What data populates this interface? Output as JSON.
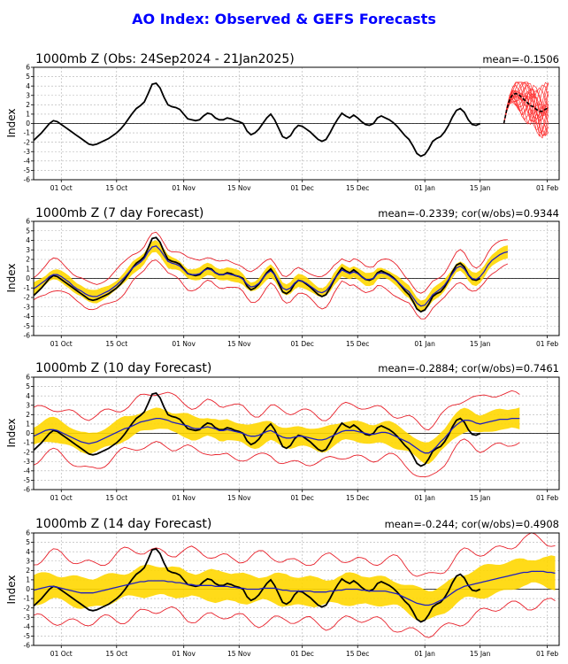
{
  "figure": {
    "title": "AO Index: Observed & GEFS Forecasts",
    "title_color": "#0000ff"
  },
  "colors": {
    "observed": "#000000",
    "ensemble_mean": "#1f1fbf",
    "spread_band": "#ffd700",
    "outer_bounds": "#e8202a",
    "members": "#ff3333",
    "grid": "#b0b0b0"
  },
  "x_ticks": [
    "01 Oct",
    "15 Oct",
    "01 Nov",
    "15 Nov",
    "01 Dec",
    "15 Dec",
    "01 Jan",
    "15 Jan",
    "01 Feb"
  ],
  "x_tick_days": [
    7,
    21,
    38,
    52,
    68,
    82,
    99,
    113,
    130
  ],
  "chart_data": [
    {
      "type": "line",
      "title": "1000mb Z (Obs: 24Sep2024 - 21Jan2025)",
      "right_label": "mean=-0.1506",
      "ylabel": "Index",
      "ylim": [
        -6,
        6
      ],
      "yticks": [
        -6,
        -5,
        -4,
        -3,
        -2,
        -1,
        0,
        1,
        2,
        3,
        4,
        5,
        6
      ],
      "x_range": [
        "24Sep2024",
        "04Feb2025"
      ],
      "grid": true,
      "series": [
        {
          "role": "observed",
          "start": "24Sep2024",
          "step_days": 1,
          "values": [
            -1.8,
            -1.4,
            -1.0,
            -0.5,
            0.0,
            0.3,
            0.2,
            -0.1,
            -0.4,
            -0.7,
            -1.0,
            -1.3,
            -1.6,
            -1.9,
            -2.2,
            -2.3,
            -2.2,
            -2.0,
            -1.8,
            -1.6,
            -1.3,
            -1.0,
            -0.6,
            -0.1,
            0.5,
            1.1,
            1.6,
            1.9,
            2.3,
            3.2,
            4.2,
            4.3,
            3.8,
            2.8,
            2.0,
            1.8,
            1.7,
            1.5,
            1.0,
            0.5,
            0.4,
            0.3,
            0.4,
            0.8,
            1.1,
            1.0,
            0.6,
            0.4,
            0.4,
            0.6,
            0.5,
            0.3,
            0.2,
            0.0,
            -0.8,
            -1.2,
            -1.0,
            -0.6,
            0.0,
            0.6,
            1.0,
            0.4,
            -0.5,
            -1.4,
            -1.6,
            -1.3,
            -0.6,
            -0.2,
            -0.3,
            -0.6,
            -0.9,
            -1.3,
            -1.7,
            -1.9,
            -1.7,
            -1.0,
            -0.2,
            0.5,
            1.1,
            0.8,
            0.6,
            0.9,
            0.6,
            0.2,
            -0.1,
            -0.2,
            0.0,
            0.6,
            0.8,
            0.6,
            0.4,
            0.1,
            -0.3,
            -0.8,
            -1.3,
            -1.7,
            -2.4,
            -3.2,
            -3.5,
            -3.3,
            -2.7,
            -1.9,
            -1.6,
            -1.4,
            -0.9,
            -0.2,
            0.7,
            1.4,
            1.6,
            1.2,
            0.4,
            -0.1,
            -0.2,
            0.0
          ]
        },
        {
          "role": "ensemble_mean",
          "start": "21Jan2025",
          "step_days": 1,
          "values": [
            0.0,
            1.5,
            2.6,
            3.1,
            3.2,
            3.1,
            2.8,
            2.5,
            2.2,
            1.9,
            1.8,
            1.5,
            1.3,
            1.3,
            1.5,
            1.7
          ]
        }
      ],
      "members": {
        "start": "21Jan2025",
        "count": 21,
        "days": 16,
        "approx_range": [
          -1.8,
          4.4
        ]
      }
    },
    {
      "type": "line",
      "title": "1000mb Z (7 day Forecast)",
      "right_label": "mean=-0.2339; cor(w/obs)=0.9344",
      "ylabel": "Index",
      "ylim": [
        -6,
        6
      ],
      "yticks": [
        -6,
        -5,
        -4,
        -3,
        -2,
        -1,
        0,
        1,
        2,
        3,
        4,
        5,
        6
      ],
      "x_range": [
        "24Sep2024",
        "04Feb2025"
      ],
      "grid": true,
      "forecast_end": "28Jan2025",
      "ensemble_mean": [
        -1.1,
        -0.8,
        -0.5,
        -0.2,
        0.2,
        0.4,
        0.4,
        0.2,
        -0.1,
        -0.4,
        -0.8,
        -1.1,
        -1.3,
        -1.6,
        -1.8,
        -1.9,
        -1.9,
        -1.7,
        -1.5,
        -1.3,
        -1.0,
        -0.7,
        -0.3,
        0.1,
        0.6,
        1.1,
        1.4,
        1.7,
        2.1,
        2.8,
        3.3,
        3.4,
        3.0,
        2.4,
        1.8,
        1.6,
        1.5,
        1.3,
        0.9,
        0.5,
        0.4,
        0.4,
        0.5,
        0.8,
        1.0,
        0.9,
        0.6,
        0.4,
        0.4,
        0.5,
        0.4,
        0.3,
        0.2,
        -0.1,
        -0.6,
        -0.9,
        -0.8,
        -0.5,
        0.0,
        0.5,
        0.8,
        0.4,
        -0.3,
        -1.0,
        -1.2,
        -1.0,
        -0.5,
        -0.2,
        -0.3,
        -0.5,
        -0.8,
        -1.1,
        -1.4,
        -1.5,
        -1.3,
        -0.8,
        -0.1,
        0.4,
        0.9,
        0.7,
        0.5,
        0.7,
        0.5,
        0.2,
        -0.1,
        -0.1,
        0.0,
        0.5,
        0.6,
        0.5,
        0.3,
        0.0,
        -0.3,
        -0.7,
        -1.1,
        -1.4,
        -2.0,
        -2.6,
        -2.9,
        -2.8,
        -2.3,
        -1.7,
        -1.4,
        -1.1,
        -0.7,
        -0.1,
        0.5,
        1.1,
        1.3,
        1.0,
        0.4,
        0.0,
        -0.1,
        0.2,
        0.7,
        1.4,
        1.9,
        2.2,
        2.5,
        2.7,
        2.8
      ],
      "spread_halfwidth": 0.6,
      "outer_halfwidth": 1.4
    },
    {
      "type": "line",
      "title": "1000mb Z (10 day Forecast)",
      "right_label": "mean=-0.2884; cor(w/obs)=0.7461",
      "ylabel": "Index",
      "ylim": [
        -6,
        6
      ],
      "yticks": [
        -6,
        -5,
        -4,
        -3,
        -2,
        -1,
        0,
        1,
        2,
        3,
        4,
        5,
        6
      ],
      "x_range": [
        "24Sep2024",
        "04Feb2025"
      ],
      "grid": true,
      "forecast_end": "31Jan2025",
      "ensemble_mean": [
        -0.3,
        -0.1,
        0.1,
        0.3,
        0.4,
        0.4,
        0.3,
        0.1,
        -0.1,
        -0.3,
        -0.5,
        -0.7,
        -0.9,
        -1.0,
        -1.1,
        -1.0,
        -0.9,
        -0.7,
        -0.5,
        -0.3,
        -0.1,
        0.1,
        0.3,
        0.5,
        0.6,
        0.8,
        1.0,
        1.2,
        1.3,
        1.4,
        1.5,
        1.6,
        1.6,
        1.5,
        1.4,
        1.2,
        1.1,
        1.0,
        0.9,
        0.8,
        0.6,
        0.5,
        0.5,
        0.6,
        0.7,
        0.6,
        0.5,
        0.3,
        0.3,
        0.4,
        0.3,
        0.2,
        0.1,
        0.0,
        -0.2,
        -0.3,
        -0.3,
        -0.2,
        0.0,
        0.2,
        0.3,
        0.1,
        -0.2,
        -0.4,
        -0.5,
        -0.5,
        -0.4,
        -0.3,
        -0.3,
        -0.4,
        -0.5,
        -0.6,
        -0.7,
        -0.7,
        -0.6,
        -0.4,
        -0.2,
        0.0,
        0.2,
        0.3,
        0.3,
        0.3,
        0.2,
        0.1,
        0.0,
        -0.1,
        -0.1,
        0.0,
        0.1,
        0.1,
        0.0,
        -0.2,
        -0.4,
        -0.6,
        -0.8,
        -1.0,
        -1.3,
        -1.6,
        -1.9,
        -2.1,
        -2.1,
        -1.8,
        -1.4,
        -0.9,
        -0.5,
        0.0,
        0.5,
        0.9,
        1.2,
        1.4,
        1.4,
        1.3,
        1.1,
        1.0,
        1.1,
        1.2,
        1.3,
        1.4,
        1.5,
        1.5,
        1.5,
        1.6,
        1.6,
        1.6
      ],
      "spread_halfwidth": 1.1,
      "outer_halfwidth": 2.6
    },
    {
      "type": "line",
      "title": "1000mb Z (14 day Forecast)",
      "right_label": "mean=-0.244; cor(w/obs)=0.4908",
      "ylabel": "Index",
      "ylim": [
        -6,
        6
      ],
      "yticks": [
        -6,
        -5,
        -4,
        -3,
        -2,
        -1,
        0,
        1,
        2,
        3,
        4,
        5,
        6
      ],
      "x_range": [
        "24Sep2024",
        "04Feb2025"
      ],
      "grid": true,
      "forecast_end": "04Feb2025",
      "ensemble_mean": [
        -0.1,
        0.0,
        0.1,
        0.2,
        0.3,
        0.3,
        0.2,
        0.1,
        0.0,
        -0.1,
        -0.2,
        -0.3,
        -0.4,
        -0.4,
        -0.4,
        -0.4,
        -0.3,
        -0.2,
        -0.1,
        0.0,
        0.1,
        0.2,
        0.3,
        0.4,
        0.5,
        0.6,
        0.7,
        0.8,
        0.8,
        0.9,
        0.9,
        0.9,
        0.9,
        0.9,
        0.8,
        0.8,
        0.7,
        0.7,
        0.6,
        0.5,
        0.5,
        0.4,
        0.4,
        0.4,
        0.4,
        0.4,
        0.3,
        0.3,
        0.3,
        0.3,
        0.2,
        0.2,
        0.1,
        0.1,
        0.0,
        0.0,
        0.0,
        0.0,
        0.1,
        0.1,
        0.1,
        0.1,
        0.0,
        -0.1,
        -0.1,
        -0.2,
        -0.2,
        -0.2,
        -0.2,
        -0.2,
        -0.2,
        -0.3,
        -0.3,
        -0.3,
        -0.3,
        -0.2,
        -0.2,
        -0.1,
        -0.1,
        0.0,
        0.0,
        0.0,
        0.0,
        -0.1,
        -0.1,
        -0.2,
        -0.2,
        -0.2,
        -0.2,
        -0.2,
        -0.3,
        -0.4,
        -0.5,
        -0.7,
        -0.9,
        -1.1,
        -1.3,
        -1.5,
        -1.6,
        -1.7,
        -1.7,
        -1.6,
        -1.4,
        -1.2,
        -1.0,
        -0.7,
        -0.4,
        -0.1,
        0.1,
        0.3,
        0.4,
        0.5,
        0.6,
        0.7,
        0.8,
        0.9,
        1.0,
        1.1,
        1.2,
        1.3,
        1.4,
        1.5,
        1.6,
        1.7,
        1.8,
        1.8,
        1.9,
        1.9,
        1.9,
        1.9,
        1.8,
        1.8,
        1.7
      ],
      "spread_halfwidth": 1.5,
      "outer_halfwidth": 3.3
    }
  ]
}
